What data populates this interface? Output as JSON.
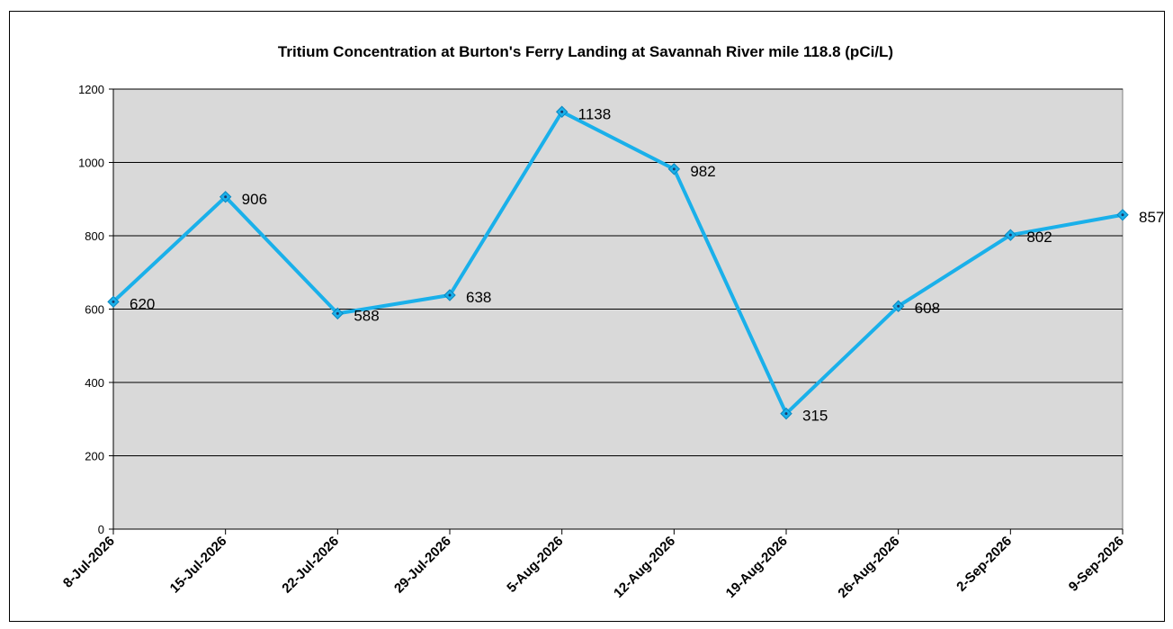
{
  "chart_data": {
    "type": "line",
    "title": "Tritium Concentration at Burton's Ferry Landing at Savannah River mile 118.8 (pCi/L)",
    "xlabel": "",
    "ylabel": "",
    "categories": [
      "8-Jul-2026",
      "15-Jul-2026",
      "22-Jul-2026",
      "29-Jul-2026",
      "5-Aug-2026",
      "12-Aug-2026",
      "19-Aug-2026",
      "26-Aug-2026",
      "2-Sep-2026",
      "9-Sep-2026"
    ],
    "series": [
      {
        "values": [
          620,
          906,
          588,
          638,
          1138,
          982,
          315,
          608,
          802,
          857
        ],
        "color": "#1ab0ea",
        "marker": "diamond"
      }
    ],
    "data_labels": [
      "620",
      "906",
      "588",
      "638",
      "1138",
      "982",
      "315",
      "608",
      "802",
      "857"
    ],
    "ylim": [
      0,
      1200
    ],
    "yticks": [
      "0",
      "200",
      "400",
      "600",
      "800",
      "1000",
      "1200"
    ],
    "grid": true,
    "legend": "none",
    "plot_background": "#d9d9d9"
  }
}
